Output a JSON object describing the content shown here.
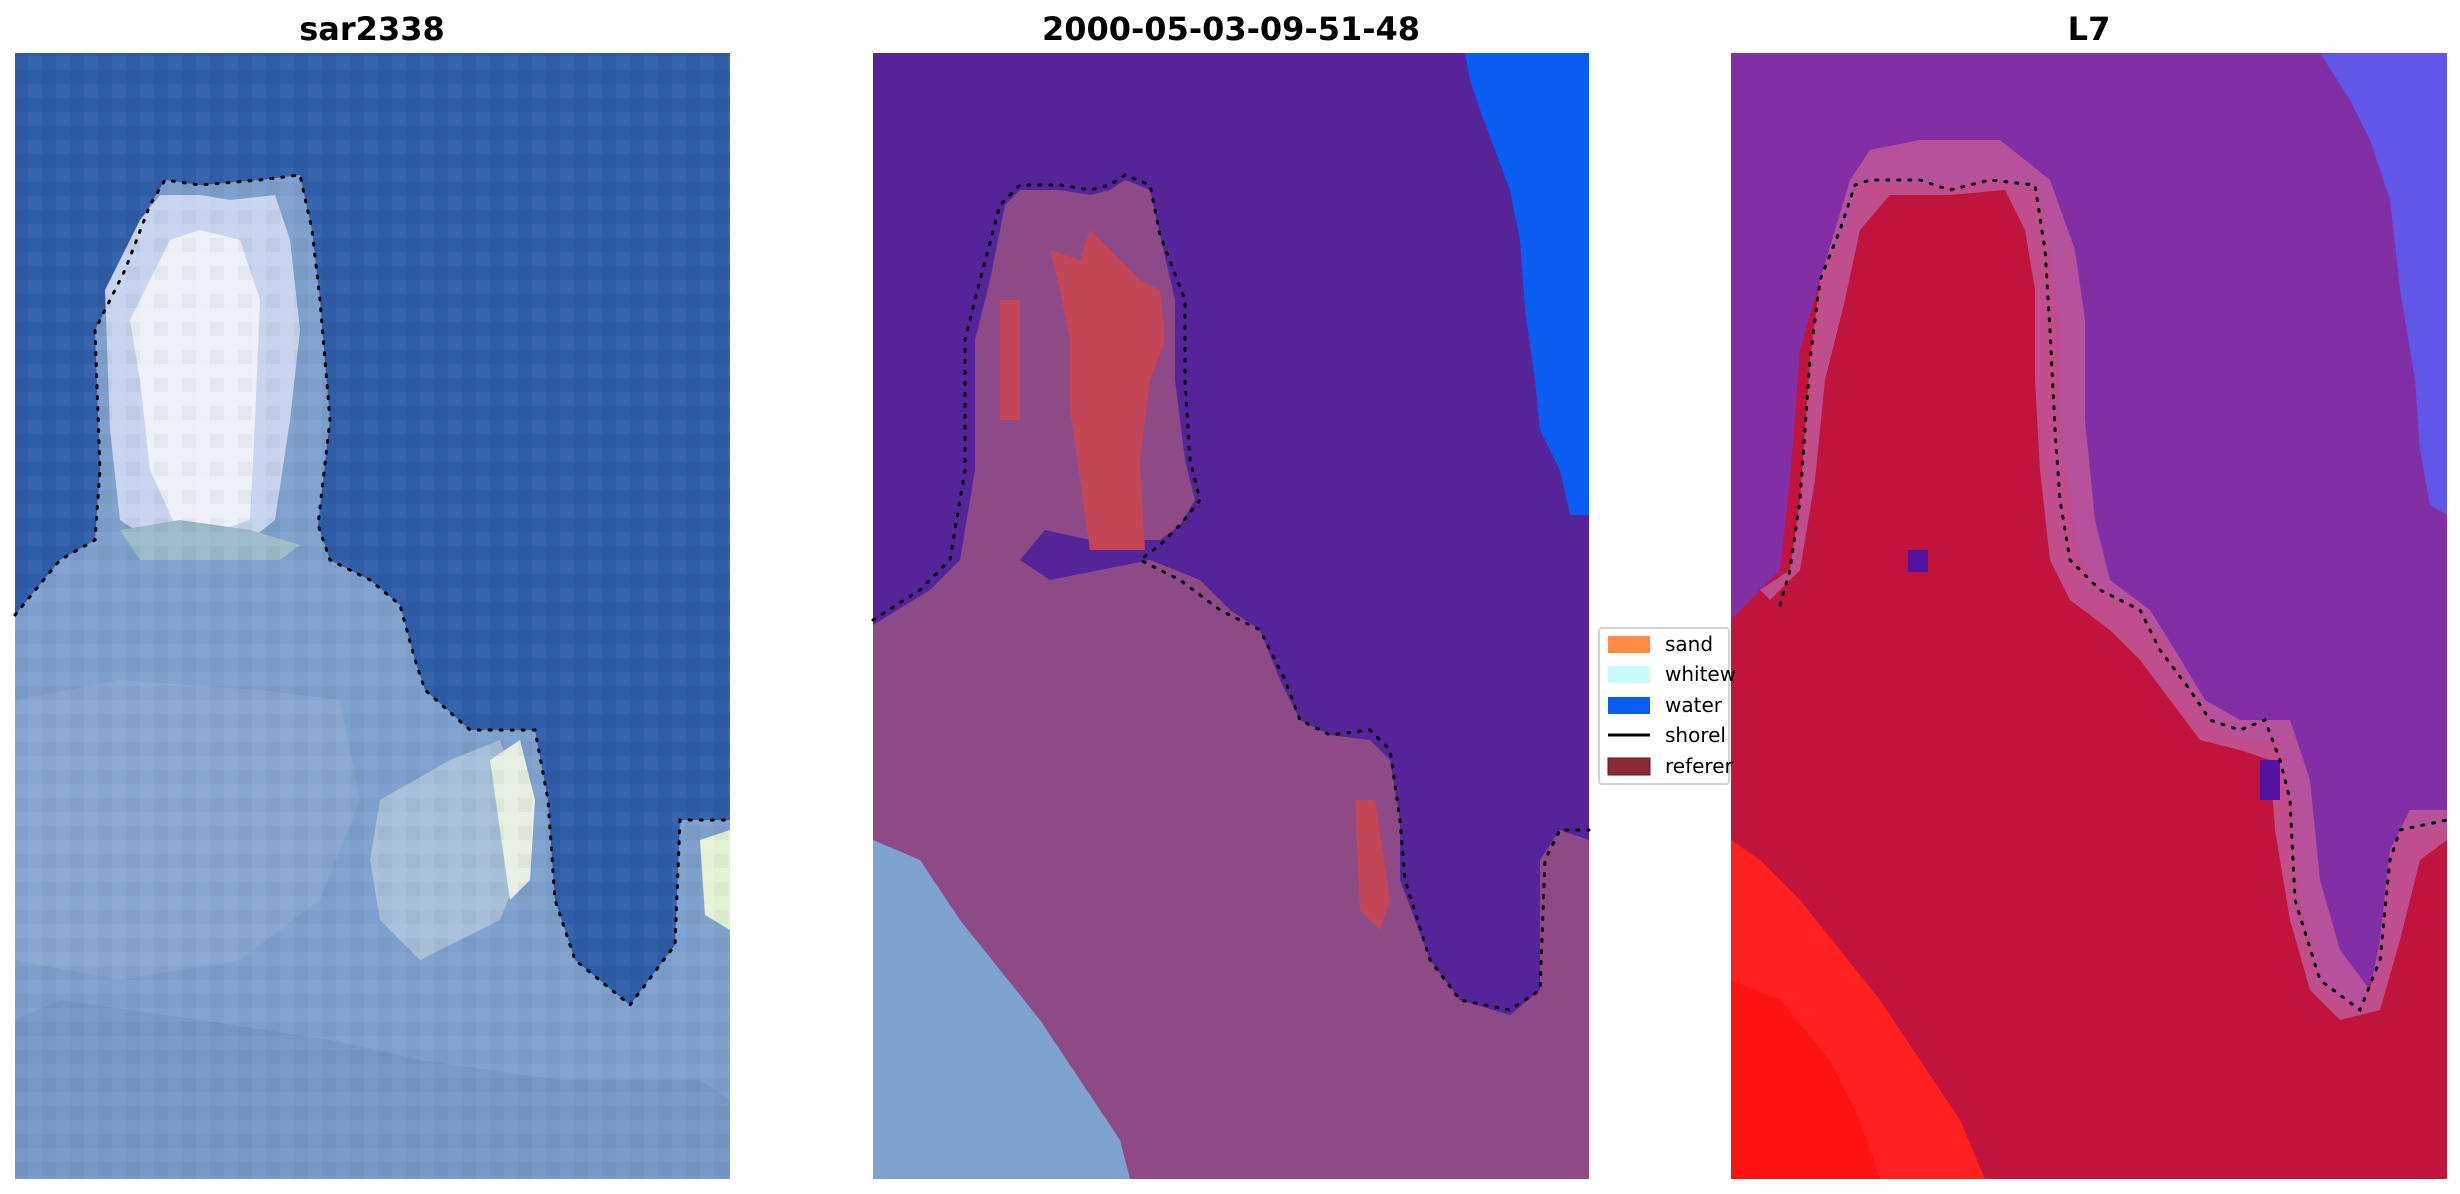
{
  "figure": {
    "panels": [
      {
        "title": "sar2338"
      },
      {
        "title": "2000-05-03-09-51-48"
      },
      {
        "title": "L7"
      }
    ],
    "legend": {
      "items": [
        {
          "label": "sand",
          "color": "#ff8c42",
          "kind": "patch"
        },
        {
          "label": "whitew",
          "color": "#c8fbfb",
          "kind": "patch"
        },
        {
          "label": "water",
          "color": "#0a5df2",
          "kind": "patch"
        },
        {
          "label": "shorel",
          "color": "#000000",
          "kind": "line"
        },
        {
          "label": "referer",
          "color": "#8c2a34",
          "kind": "patch"
        }
      ]
    },
    "colors": {
      "water_rgb": "#2f5ea8",
      "land_rgb": "#7ea0cc",
      "whitewater_rgb": "#eef0f8",
      "water_class": "#552499",
      "land_class": "#8d4a87",
      "sand_class": "#c24656",
      "water_blue": "#0a5df2",
      "l7_land": "#c0143c",
      "l7_water": "#822fa6",
      "l7_bright": "#ff2020",
      "shoreline": "#000000"
    }
  }
}
